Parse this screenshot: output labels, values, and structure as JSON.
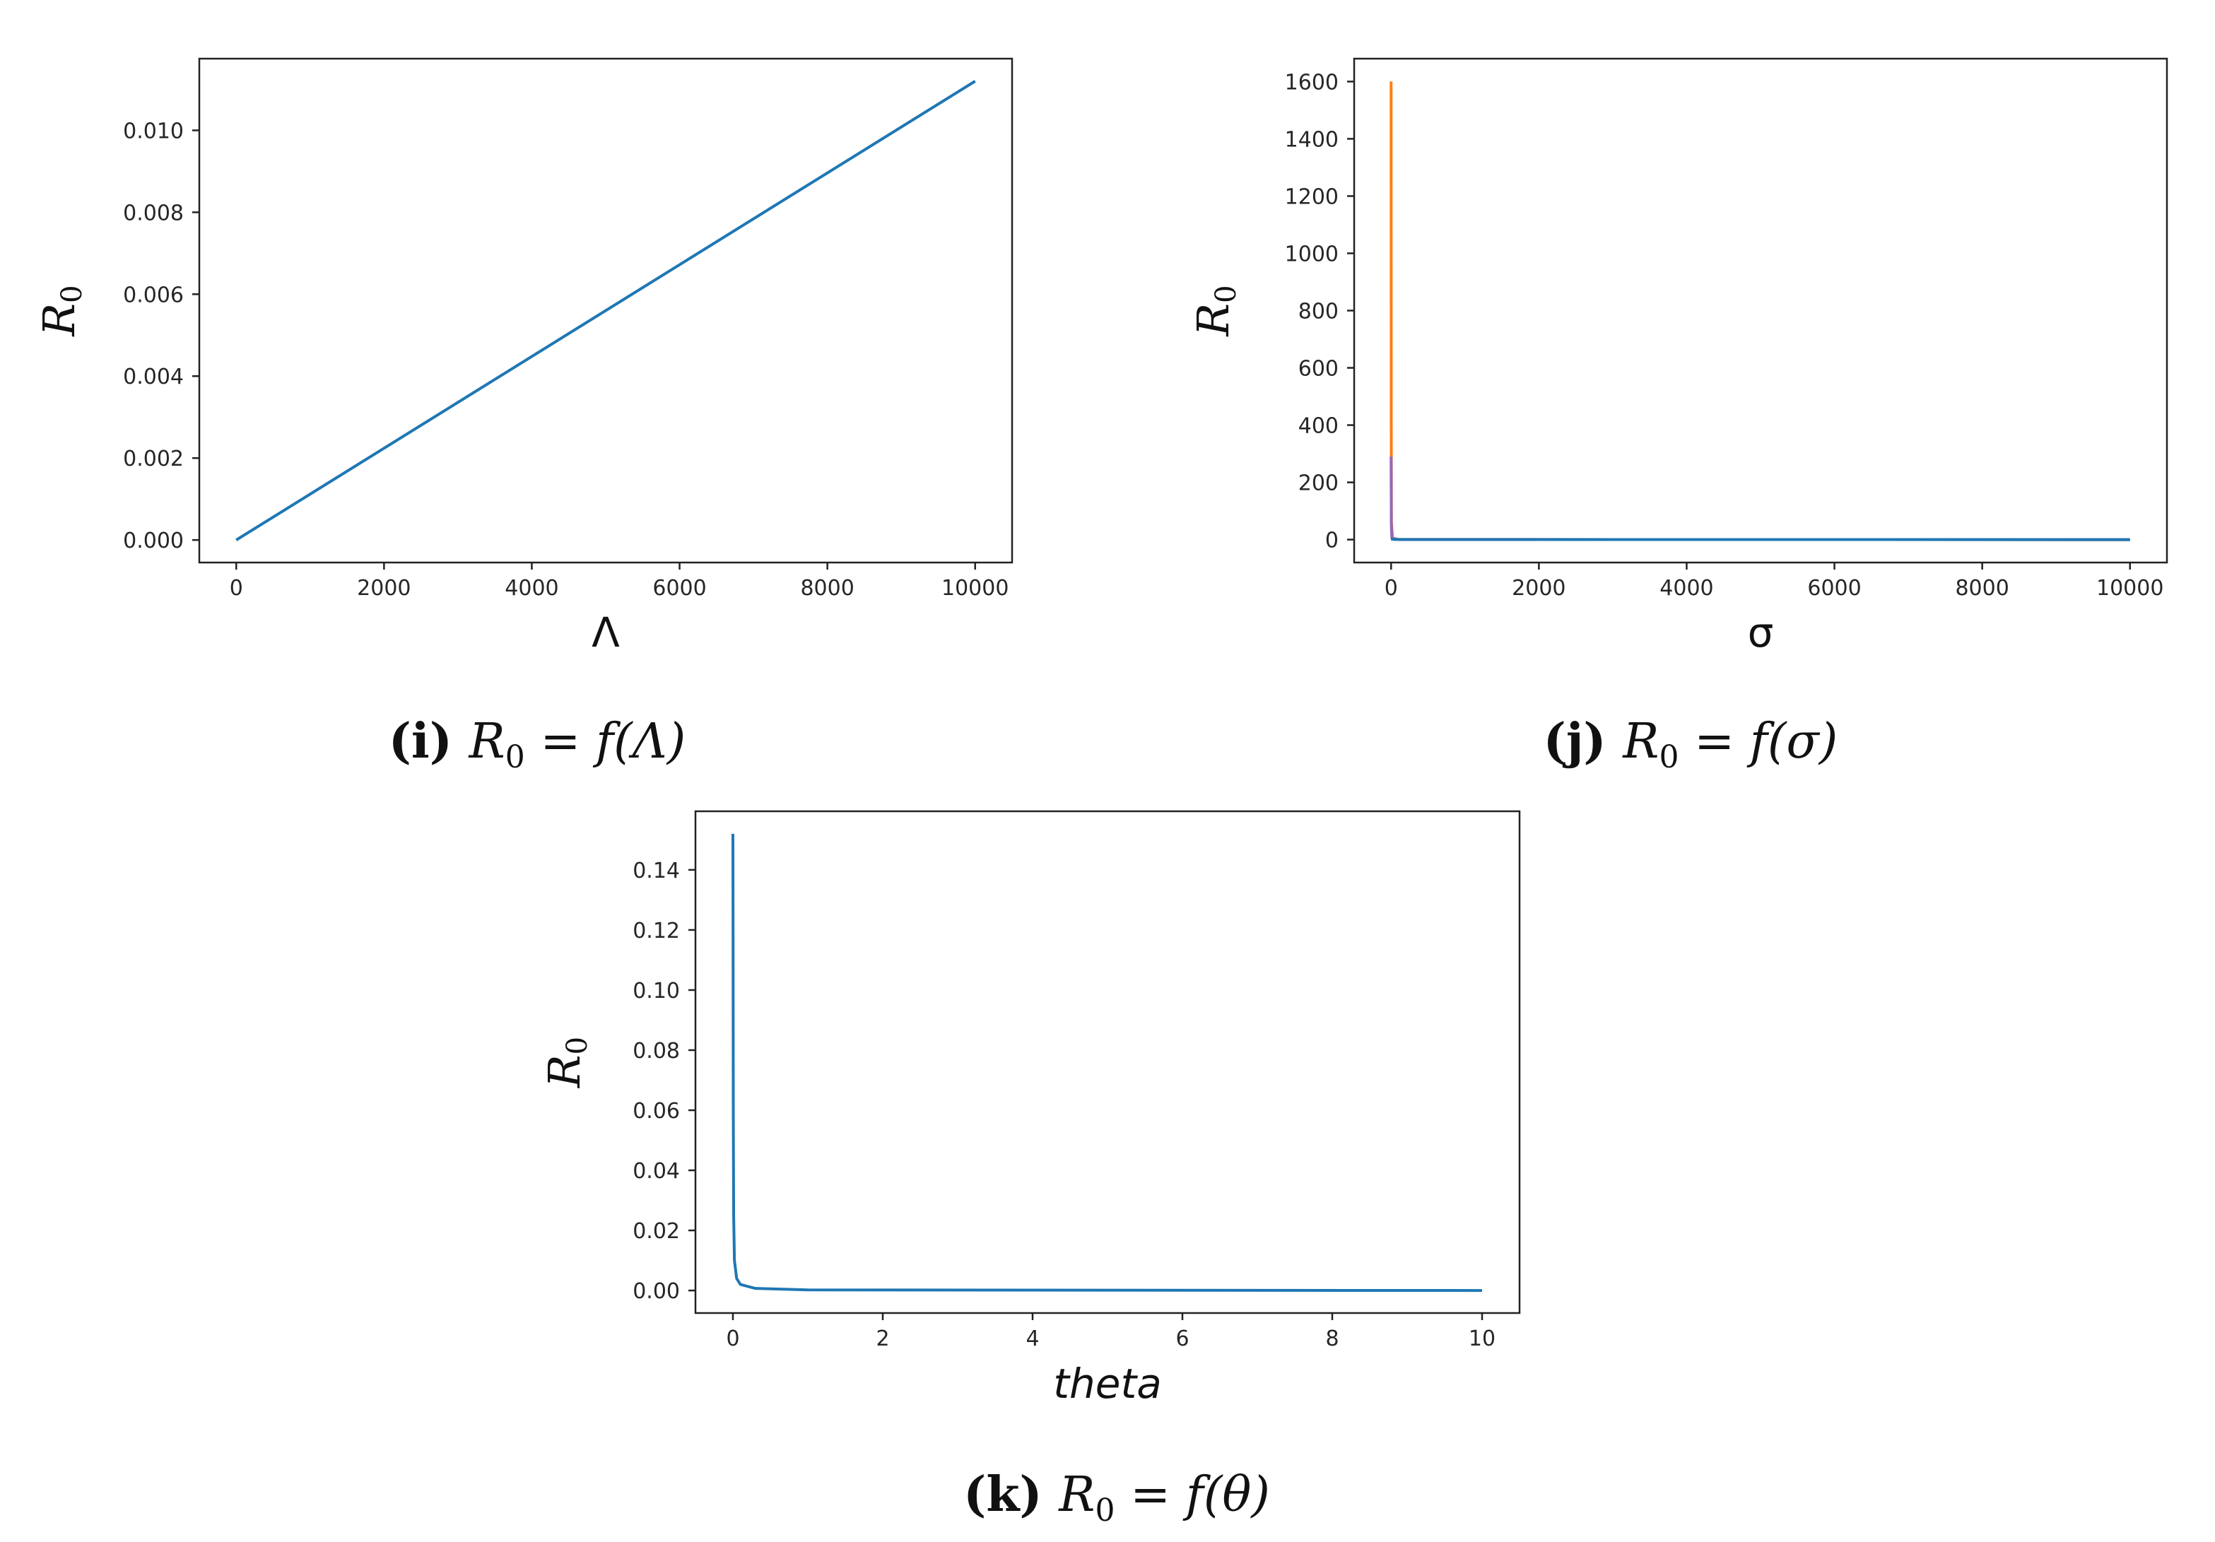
{
  "chart_data": [
    {
      "id": "panel-i",
      "type": "line",
      "xlabel": "Λ",
      "xlabel_italic": false,
      "ylabel": "R",
      "ylabel_sub": "0",
      "caption": {
        "letter": "(i)",
        "lhs": "R",
        "lhs_sub": "0",
        "rhs": " = f(Λ)"
      },
      "xlim": [
        -500,
        10500
      ],
      "ylim": [
        -0.00055,
        0.01175
      ],
      "xticks": [
        0,
        2000,
        4000,
        6000,
        8000,
        10000
      ],
      "xtick_labels": [
        "0",
        "2000",
        "4000",
        "6000",
        "8000",
        "10000"
      ],
      "yticks": [
        0.0,
        0.002,
        0.004,
        0.006,
        0.008,
        0.01
      ],
      "ytick_labels": [
        "0.000",
        "0.002",
        "0.004",
        "0.006",
        "0.008",
        "0.010"
      ],
      "grid": false,
      "series": [
        {
          "color": "#1f77b4",
          "points": [
            [
              0,
              0.0
            ],
            [
              10000,
              0.0112
            ]
          ]
        }
      ]
    },
    {
      "id": "panel-j",
      "type": "line",
      "xlabel": "σ",
      "xlabel_italic": false,
      "ylabel": "R",
      "ylabel_sub": "0",
      "caption": {
        "letter": "(j)",
        "lhs": "R",
        "lhs_sub": "0",
        "rhs": " = f(σ)"
      },
      "xlim": [
        -500,
        10500
      ],
      "ylim": [
        -80,
        1680
      ],
      "xticks": [
        0,
        2000,
        4000,
        6000,
        8000,
        10000
      ],
      "xtick_labels": [
        "0",
        "2000",
        "4000",
        "6000",
        "8000",
        "10000"
      ],
      "yticks": [
        0,
        200,
        400,
        600,
        800,
        1000,
        1200,
        1400,
        1600
      ],
      "ytick_labels": [
        "0",
        "200",
        "400",
        "600",
        "800",
        "1000",
        "1200",
        "1400",
        "1600"
      ],
      "grid": false,
      "series": [
        {
          "color": "#ff7f0e",
          "points": [
            [
              0,
              1600
            ],
            [
              2,
              400
            ],
            [
              5,
              60
            ],
            [
              20,
              5
            ],
            [
              100,
              0.5
            ],
            [
              10000,
              0.0
            ]
          ]
        },
        {
          "color": "#9467bd",
          "points": [
            [
              0,
              290
            ],
            [
              3,
              50
            ],
            [
              10,
              5
            ],
            [
              100,
              0.3
            ],
            [
              10000,
              0.0
            ]
          ]
        },
        {
          "color": "#1f77b4",
          "points": [
            [
              0,
              2
            ],
            [
              50,
              0.5
            ],
            [
              10000,
              0.0
            ]
          ]
        }
      ]
    },
    {
      "id": "panel-k",
      "type": "line",
      "xlabel": "theta",
      "xlabel_italic": true,
      "ylabel": "R",
      "ylabel_sub": "0",
      "caption": {
        "letter": "(k)",
        "lhs": "R",
        "lhs_sub": "0",
        "rhs": " = f(θ)"
      },
      "xlim": [
        -0.5,
        10.5
      ],
      "ylim": [
        -0.0075,
        0.1595
      ],
      "xticks": [
        0,
        2,
        4,
        6,
        8,
        10
      ],
      "xtick_labels": [
        "0",
        "2",
        "4",
        "6",
        "8",
        "10"
      ],
      "yticks": [
        0.0,
        0.02,
        0.04,
        0.06,
        0.08,
        0.1,
        0.12,
        0.14
      ],
      "ytick_labels": [
        "0.00",
        "0.02",
        "0.04",
        "0.06",
        "0.08",
        "0.10",
        "0.12",
        "0.14"
      ],
      "grid": false,
      "series": [
        {
          "color": "#1f77b4",
          "points": [
            [
              0.0,
              0.152
            ],
            [
              0.002,
              0.12
            ],
            [
              0.005,
              0.06
            ],
            [
              0.01,
              0.025
            ],
            [
              0.02,
              0.01
            ],
            [
              0.05,
              0.004
            ],
            [
              0.1,
              0.002
            ],
            [
              0.3,
              0.0007
            ],
            [
              1.0,
              0.0002
            ],
            [
              10.0,
              0.0
            ]
          ]
        }
      ]
    }
  ]
}
